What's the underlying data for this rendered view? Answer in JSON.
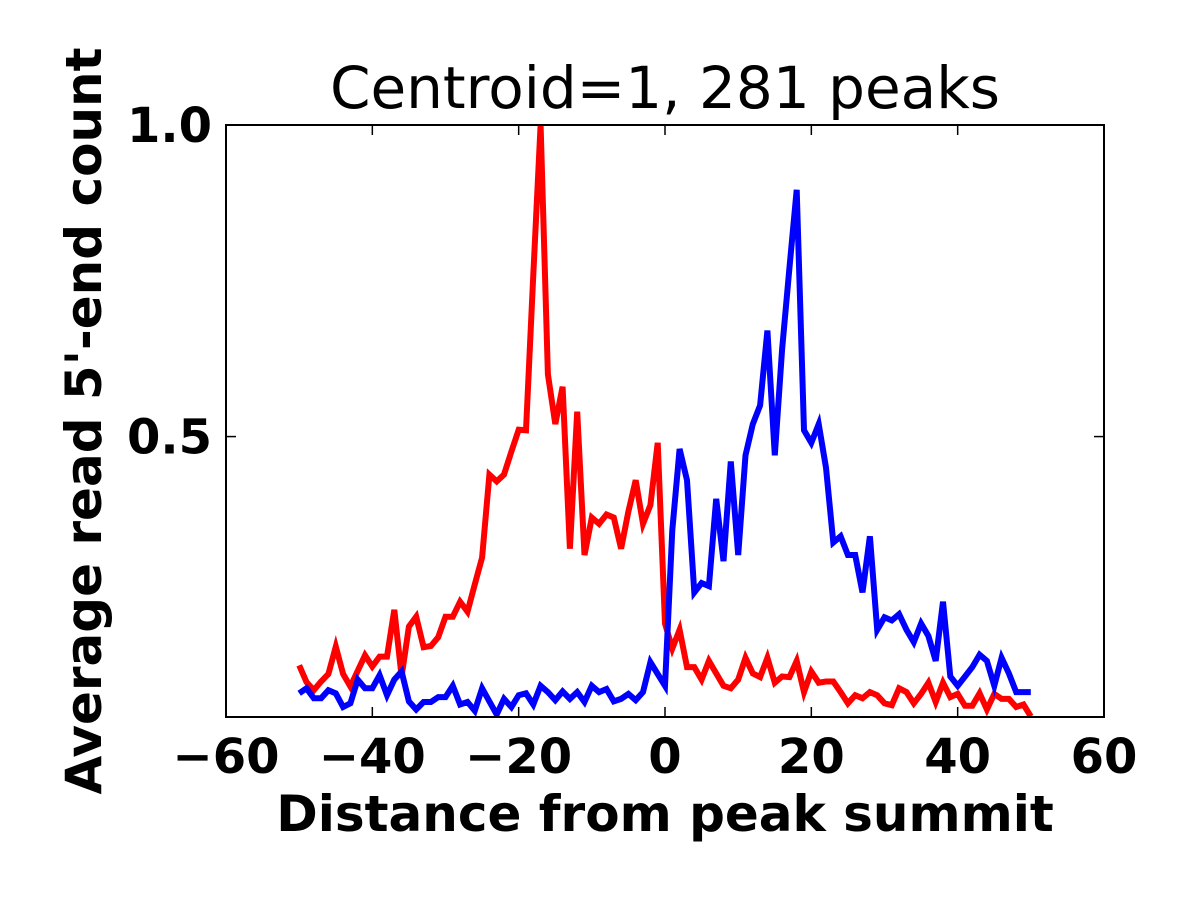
{
  "chart_data": {
    "type": "line",
    "title": "Centroid=1, 281 peaks",
    "xlabel": "Distance from peak summit",
    "ylabel": "Average read 5'-end count",
    "xlim": [
      -60,
      60
    ],
    "ylim": [
      0.05,
      1.0
    ],
    "xticks": [
      -60,
      -40,
      -20,
      0,
      20,
      40,
      60
    ],
    "xtick_labels": [
      "−60",
      "−40",
      "−20",
      "0",
      "20",
      "40",
      "60"
    ],
    "yticks": [
      0.5,
      1.0
    ],
    "ytick_labels": [
      "0.5",
      "1.0"
    ],
    "grid": false,
    "x": [
      -50,
      -49,
      -48,
      -47,
      -46,
      -45,
      -44,
      -43,
      -42,
      -41,
      -40,
      -39,
      -38,
      -37,
      -36,
      -35,
      -34,
      -33,
      -32,
      -31,
      -30,
      -29,
      -28,
      -27,
      -26,
      -25,
      -24,
      -23,
      -22,
      -21,
      -20,
      -19,
      -18,
      -17,
      -16,
      -15,
      -14,
      -13,
      -12,
      -11,
      -10,
      -9,
      -8,
      -7,
      -6,
      -5,
      -4,
      -3,
      -2,
      -1,
      0,
      1,
      2,
      3,
      4,
      5,
      6,
      7,
      8,
      9,
      10,
      11,
      12,
      13,
      14,
      15,
      16,
      17,
      18,
      19,
      20,
      21,
      22,
      23,
      24,
      25,
      26,
      27,
      28,
      29,
      30,
      31,
      32,
      33,
      34,
      35,
      36,
      37,
      38,
      39,
      40,
      41,
      42,
      43,
      44,
      45,
      46,
      47,
      48,
      49,
      50
    ],
    "series": [
      {
        "color": "#ff0000",
        "values": [
          0.133,
          0.106,
          0.093,
          0.107,
          0.119,
          0.163,
          0.119,
          0.099,
          0.124,
          0.149,
          0.131,
          0.147,
          0.147,
          0.222,
          0.115,
          0.195,
          0.211,
          0.162,
          0.164,
          0.178,
          0.211,
          0.211,
          0.235,
          0.219,
          0.263,
          0.306,
          0.439,
          0.428,
          0.439,
          0.476,
          0.511,
          0.51,
          0.76,
          1.0,
          0.6,
          0.52,
          0.58,
          0.32,
          0.54,
          0.31,
          0.37,
          0.36,
          0.375,
          0.37,
          0.32,
          0.38,
          0.43,
          0.36,
          0.39,
          0.49,
          0.2,
          0.16,
          0.19,
          0.13,
          0.13,
          0.11,
          0.14,
          0.12,
          0.1,
          0.096,
          0.11,
          0.145,
          0.12,
          0.114,
          0.145,
          0.105,
          0.115,
          0.114,
          0.14,
          0.09,
          0.123,
          0.105,
          0.107,
          0.107,
          0.09,
          0.072,
          0.085,
          0.08,
          0.09,
          0.085,
          0.072,
          0.069,
          0.096,
          0.09,
          0.072,
          0.087,
          0.105,
          0.074,
          0.105,
          0.082,
          0.087,
          0.068,
          0.068,
          0.088,
          0.062,
          0.087,
          0.079,
          0.079,
          0.066,
          0.07,
          0.051
        ]
      },
      {
        "color": "#0000ff",
        "values": [
          0.088,
          0.096,
          0.08,
          0.08,
          0.093,
          0.088,
          0.066,
          0.072,
          0.11,
          0.096,
          0.096,
          0.117,
          0.085,
          0.11,
          0.123,
          0.075,
          0.062,
          0.074,
          0.074,
          0.082,
          0.082,
          0.1,
          0.07,
          0.074,
          0.06,
          0.096,
          0.075,
          0.054,
          0.079,
          0.066,
          0.085,
          0.088,
          0.07,
          0.1,
          0.09,
          0.077,
          0.091,
          0.079,
          0.09,
          0.074,
          0.1,
          0.09,
          0.095,
          0.075,
          0.079,
          0.087,
          0.077,
          0.09,
          0.138,
          0.119,
          0.1,
          0.35,
          0.48,
          0.43,
          0.25,
          0.265,
          0.26,
          0.4,
          0.3,
          0.46,
          0.31,
          0.47,
          0.52,
          0.55,
          0.67,
          0.47,
          0.64,
          0.77,
          0.896,
          0.51,
          0.49,
          0.52,
          0.45,
          0.33,
          0.34,
          0.31,
          0.31,
          0.25,
          0.34,
          0.19,
          0.21,
          0.205,
          0.215,
          0.19,
          0.17,
          0.2,
          0.18,
          0.14,
          0.235,
          0.115,
          0.1,
          0.115,
          0.13,
          0.15,
          0.14,
          0.1,
          0.145,
          0.12,
          0.09,
          0.09,
          0.09
        ]
      }
    ]
  }
}
